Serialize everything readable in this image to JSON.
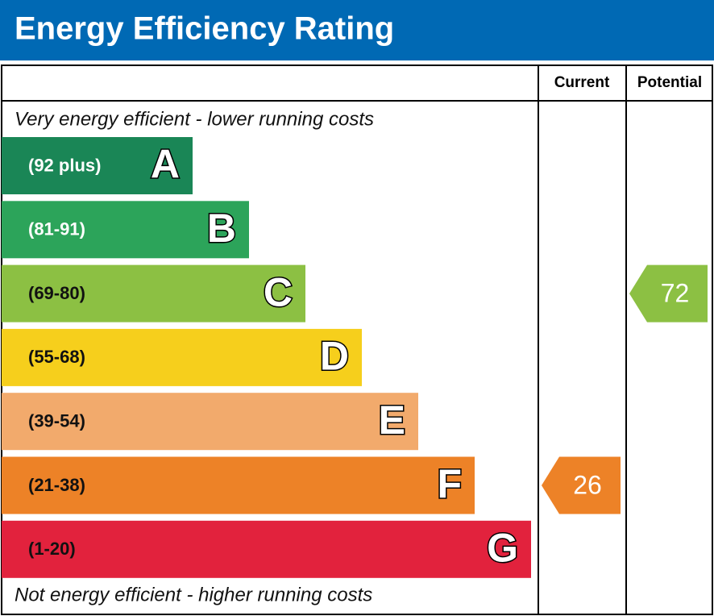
{
  "header": {
    "title": "Energy Efficiency Rating"
  },
  "columns": [
    "Current",
    "Potential"
  ],
  "top_note": "Very energy efficient - lower running costs",
  "bottom_note": "Not energy efficient - higher running costs",
  "bands": [
    {
      "range": "(92 plus)",
      "letter": "A",
      "color": "#1a8656"
    },
    {
      "range": "(81-91)",
      "letter": "B",
      "color": "#2ca45a"
    },
    {
      "range": "(69-80)",
      "letter": "C",
      "color": "#8cc043"
    },
    {
      "range": "(55-68)",
      "letter": "D",
      "color": "#f6cf1c"
    },
    {
      "range": "(39-54)",
      "letter": "E",
      "color": "#f2aa6c"
    },
    {
      "range": "(21-38)",
      "letter": "F",
      "color": "#ed8227"
    },
    {
      "range": "(1-20)",
      "letter": "G",
      "color": "#e2223d"
    }
  ],
  "current": {
    "value": 26
  },
  "potential": {
    "value": 72
  }
}
